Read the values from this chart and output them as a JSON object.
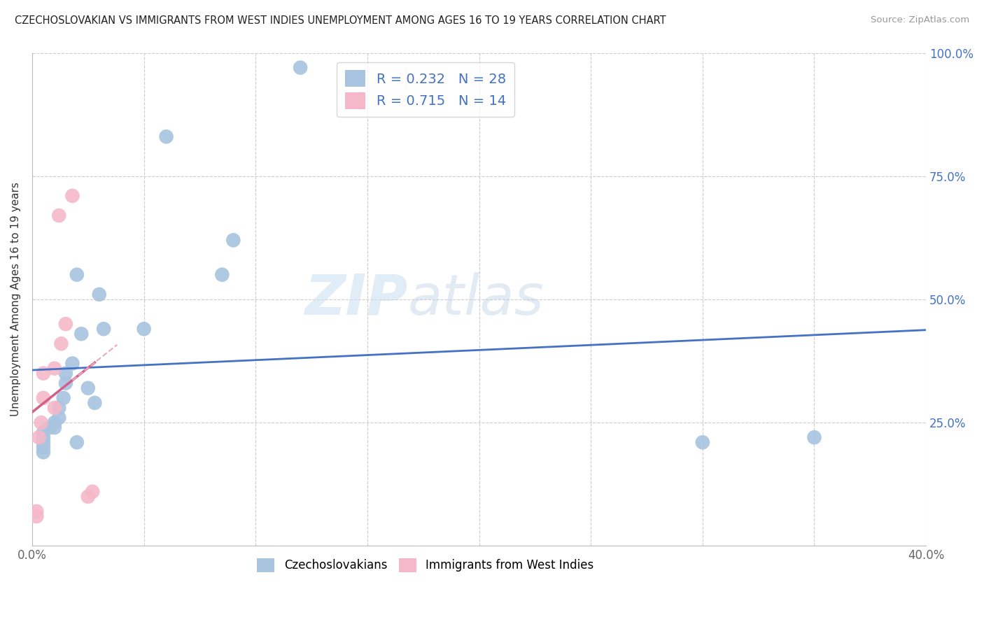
{
  "title": "CZECHOSLOVAKIAN VS IMMIGRANTS FROM WEST INDIES UNEMPLOYMENT AMONG AGES 16 TO 19 YEARS CORRELATION CHART",
  "source": "Source: ZipAtlas.com",
  "ylabel": "Unemployment Among Ages 16 to 19 years",
  "xlim": [
    0.0,
    0.4
  ],
  "ylim": [
    0.0,
    1.0
  ],
  "blue_R": 0.232,
  "blue_N": 28,
  "pink_R": 0.715,
  "pink_N": 14,
  "blue_color": "#a8c4e0",
  "pink_color": "#f4b8c8",
  "blue_line_color": "#4472C4",
  "pink_line_color": "#d4608a",
  "pink_dash_color": "#e8aabf",
  "watermark_zip": "ZIP",
  "watermark_atlas": "atlas",
  "legend_label_blue": "Czechoslovakians",
  "legend_label_pink": "Immigrants from West Indies",
  "blue_x": [
    0.005,
    0.005,
    0.005,
    0.005,
    0.005,
    0.008,
    0.01,
    0.01,
    0.012,
    0.012,
    0.014,
    0.015,
    0.015,
    0.018,
    0.02,
    0.02,
    0.022,
    0.025,
    0.028,
    0.03,
    0.032,
    0.05,
    0.06,
    0.085,
    0.09,
    0.12,
    0.3,
    0.35
  ],
  "blue_y": [
    0.19,
    0.2,
    0.21,
    0.22,
    0.23,
    0.24,
    0.24,
    0.25,
    0.26,
    0.28,
    0.3,
    0.33,
    0.35,
    0.37,
    0.21,
    0.55,
    0.43,
    0.32,
    0.29,
    0.51,
    0.44,
    0.44,
    0.83,
    0.55,
    0.62,
    0.97,
    0.21,
    0.22
  ],
  "pink_x": [
    0.002,
    0.002,
    0.003,
    0.004,
    0.005,
    0.005,
    0.01,
    0.01,
    0.012,
    0.013,
    0.015,
    0.018,
    0.025,
    0.027
  ],
  "pink_y": [
    0.06,
    0.07,
    0.22,
    0.25,
    0.3,
    0.35,
    0.28,
    0.36,
    0.67,
    0.41,
    0.45,
    0.71,
    0.1,
    0.11
  ]
}
